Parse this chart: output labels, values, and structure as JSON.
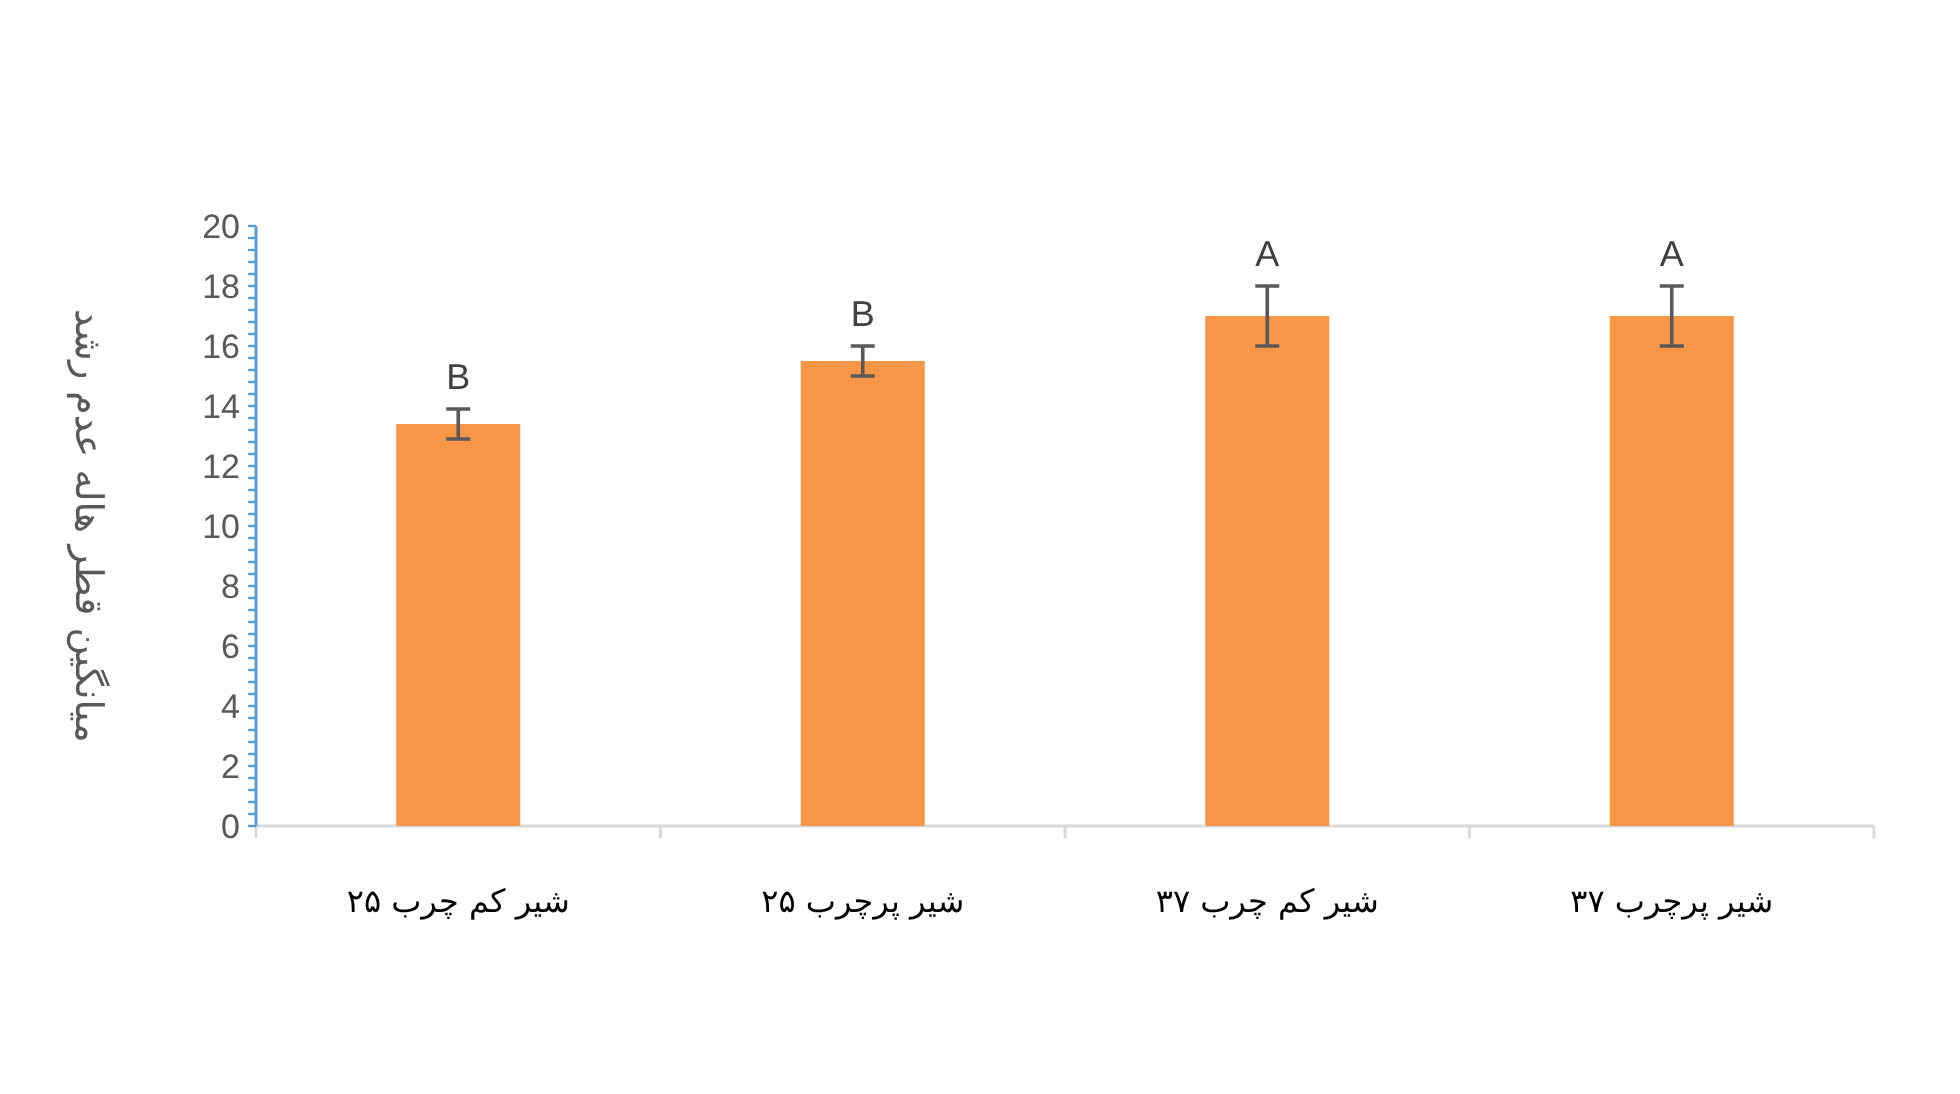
{
  "chart_data": {
    "type": "bar",
    "ylabel": "میانگین قطر هاله عدم رشد",
    "categories": [
      "شیر کم چرب ۲۵",
      "شیر پرچرب ۲۵",
      "شیر کم چرب ۳۷",
      "شیر پرچرب ۳۷"
    ],
    "values": [
      13.4,
      15.5,
      17,
      17
    ],
    "errors": [
      0.5,
      0.5,
      1,
      1
    ],
    "color": "#f79646",
    "ylim": [
      0,
      20
    ],
    "yticks": [
      0,
      2,
      4,
      6,
      8,
      10,
      12,
      14,
      16,
      18,
      20
    ],
    "grid": false,
    "annotations": [
      {
        "text": "B",
        "x": "شیر کم چرب ۲۵",
        "y": 13.9
      },
      {
        "text": "B",
        "x": "شیر پرچرب ۲۵",
        "y": 16
      },
      {
        "text": "A",
        "x": "شیر کم چرب ۳۷",
        "y": 18
      },
      {
        "text": "A",
        "x": "شیر پرچرب ۳۷",
        "y": 18
      }
    ]
  }
}
